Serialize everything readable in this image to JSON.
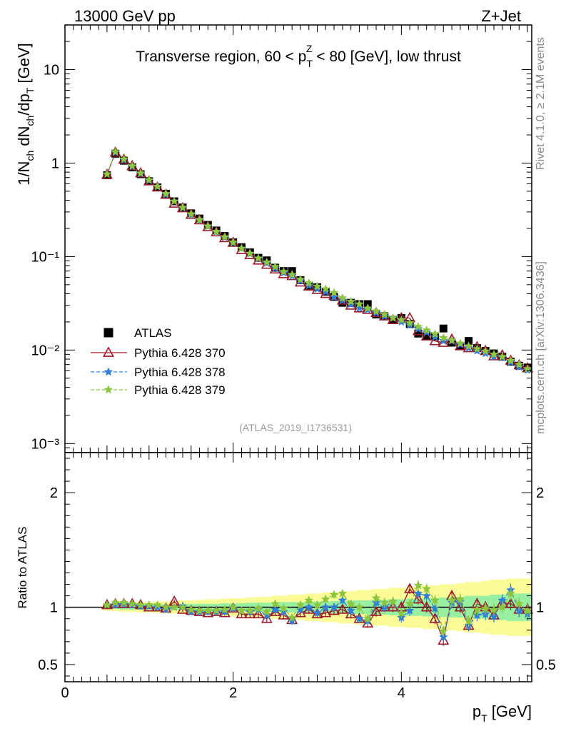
{
  "header": {
    "left": "13000 GeV pp",
    "right": "Z+Jet"
  },
  "side_labels": {
    "rivet": "Rivet 4.1.0, ≥ 2.1M events",
    "mcplots": "mcplots.cern.ch [arXiv:1306.3436]"
  },
  "analysis_id": "(ATLAS_2019_I1736531)",
  "chart_data": [
    {
      "type": "scatter",
      "panel": "main",
      "title": "Transverse region, 60 < p_T^Z < 80 [GeV], low thrust",
      "title_parts": {
        "a": "Transverse region, 60 < p",
        "sub": "T",
        "sup": "Z",
        "b": " < 80 [GeV], low thrust"
      },
      "ylabel": "1/N_ch dN_ch/dp_T [GeV]",
      "ylabel_parts": {
        "a": "1/N",
        "s1": "ch",
        "b": " dN",
        "s2": "ch",
        "c": "/dp",
        "s3": "T",
        "d": " [GeV]"
      },
      "yscale": "log",
      "ylim": [
        0.0008,
        30
      ],
      "xlim": [
        0,
        5.55
      ],
      "y_tick_labels": [
        "10",
        "1",
        "10⁻¹",
        "10⁻²",
        "10⁻³"
      ],
      "legend_position": "lower-left",
      "x": [
        0.5,
        0.6,
        0.7,
        0.8,
        0.9,
        1.0,
        1.1,
        1.2,
        1.3,
        1.4,
        1.5,
        1.6,
        1.7,
        1.8,
        1.9,
        2.0,
        2.1,
        2.2,
        2.3,
        2.4,
        2.5,
        2.6,
        2.7,
        2.8,
        2.9,
        3.0,
        3.1,
        3.2,
        3.3,
        3.4,
        3.5,
        3.6,
        3.7,
        3.8,
        3.9,
        4.0,
        4.1,
        4.2,
        4.3,
        4.4,
        4.5,
        4.6,
        4.7,
        4.8,
        4.9,
        5.0,
        5.1,
        5.2,
        5.3,
        5.4,
        5.5
      ],
      "series": [
        {
          "name": "ATLAS",
          "marker": "filled-square",
          "color": "#000000",
          "values": [
            0.74,
            1.26,
            1.06,
            0.9,
            0.76,
            0.64,
            0.55,
            0.47,
            0.39,
            0.335,
            0.29,
            0.255,
            0.218,
            0.19,
            0.166,
            0.142,
            0.126,
            0.111,
            0.097,
            0.091,
            0.076,
            0.07,
            0.07,
            0.056,
            0.049,
            0.047,
            0.042,
            0.037,
            0.032,
            0.032,
            0.031,
            0.031,
            0.024,
            0.023,
            0.021,
            0.022,
            0.019,
            0.015,
            0.014,
            0.014,
            0.017,
            0.012,
            0.011,
            0.0125,
            0.0105,
            0.0098,
            0.0092,
            0.0085,
            0.0075,
            0.0068,
            0.0065
          ]
        },
        {
          "name": "Pythia 6.428 370",
          "marker": "open-triangle",
          "color": "#9a1a2a",
          "values": [
            0.75,
            1.3,
            1.09,
            0.93,
            0.78,
            0.64,
            0.55,
            0.46,
            0.37,
            0.33,
            0.28,
            0.245,
            0.207,
            0.182,
            0.158,
            0.141,
            0.118,
            0.104,
            0.091,
            0.082,
            0.073,
            0.065,
            0.062,
            0.053,
            0.048,
            0.044,
            0.04,
            0.038,
            0.034,
            0.03,
            0.028,
            0.027,
            0.025,
            0.023,
            0.021,
            0.022,
            0.022,
            0.016,
            0.014,
            0.0125,
            0.012,
            0.013,
            0.011,
            0.0105,
            0.0108,
            0.0098,
            0.0086,
            0.0088,
            0.0077,
            0.0069,
            0.0064
          ]
        },
        {
          "name": "Pythia 6.428 378",
          "marker": "star",
          "color": "#2f7ed8",
          "values": [
            0.76,
            1.3,
            1.08,
            0.92,
            0.77,
            0.65,
            0.56,
            0.46,
            0.39,
            0.33,
            0.28,
            0.245,
            0.21,
            0.183,
            0.16,
            0.14,
            0.122,
            0.107,
            0.095,
            0.085,
            0.075,
            0.067,
            0.062,
            0.055,
            0.049,
            0.045,
            0.042,
            0.037,
            0.034,
            0.031,
            0.028,
            0.027,
            0.025,
            0.023,
            0.022,
            0.02,
            0.0185,
            0.0168,
            0.0155,
            0.0138,
            0.0125,
            0.0125,
            0.0115,
            0.0105,
            0.0098,
            0.0092,
            0.0085,
            0.0083,
            0.0074,
            0.0066,
            0.0061
          ]
        },
        {
          "name": "Pythia 6.428 379",
          "marker": "star",
          "color": "#8cc63f",
          "values": [
            0.76,
            1.32,
            1.1,
            0.93,
            0.78,
            0.66,
            0.56,
            0.47,
            0.39,
            0.335,
            0.285,
            0.248,
            0.212,
            0.185,
            0.162,
            0.142,
            0.122,
            0.108,
            0.096,
            0.087,
            0.078,
            0.069,
            0.064,
            0.057,
            0.052,
            0.048,
            0.045,
            0.041,
            0.036,
            0.033,
            0.031,
            0.028,
            0.026,
            0.024,
            0.022,
            0.021,
            0.0195,
            0.0178,
            0.0163,
            0.0148,
            0.0135,
            0.0127,
            0.0118,
            0.011,
            0.0103,
            0.0097,
            0.009,
            0.0085,
            0.0077,
            0.007,
            0.0063
          ]
        }
      ]
    },
    {
      "type": "scatter",
      "panel": "ratio",
      "ylabel": "Ratio to ATLAS",
      "xlabel": "p_T [GeV]",
      "xlabel_parts": {
        "a": "p",
        "sub": "T",
        "b": " [GeV]"
      },
      "ylim": [
        0.35,
        2.35
      ],
      "xlim": [
        0,
        5.55
      ],
      "x_ticks": [
        0,
        2,
        4
      ],
      "x_tick_labels": [
        "0",
        "2",
        "4"
      ],
      "y_ticks": [
        0.5,
        1,
        2
      ],
      "y_tick_labels": [
        "0.5",
        "1",
        "2"
      ],
      "reference_line": 1,
      "x": [
        0.5,
        0.6,
        0.7,
        0.8,
        0.9,
        1.0,
        1.1,
        1.2,
        1.3,
        1.4,
        1.5,
        1.6,
        1.7,
        1.8,
        1.9,
        2.0,
        2.1,
        2.2,
        2.3,
        2.4,
        2.5,
        2.6,
        2.7,
        2.8,
        2.9,
        3.0,
        3.1,
        3.2,
        3.3,
        3.4,
        3.5,
        3.6,
        3.7,
        3.8,
        3.9,
        4.0,
        4.1,
        4.2,
        4.3,
        4.4,
        4.5,
        4.6,
        4.7,
        4.8,
        4.9,
        5.0,
        5.1,
        5.2,
        5.3,
        5.4,
        5.5
      ],
      "band_inner": [
        0.015,
        0.015,
        0.02,
        0.02,
        0.02,
        0.02,
        0.02,
        0.025,
        0.025,
        0.025,
        0.03,
        0.03,
        0.03,
        0.03,
        0.035,
        0.035,
        0.035,
        0.04,
        0.04,
        0.04,
        0.04,
        0.045,
        0.045,
        0.045,
        0.05,
        0.05,
        0.05,
        0.055,
        0.055,
        0.06,
        0.06,
        0.06,
        0.065,
        0.065,
        0.07,
        0.07,
        0.075,
        0.075,
        0.08,
        0.08,
        0.085,
        0.09,
        0.09,
        0.1,
        0.1,
        0.1,
        0.11,
        0.11,
        0.12,
        0.12,
        0.12
      ],
      "band_outer": [
        0.03,
        0.035,
        0.04,
        0.04,
        0.045,
        0.045,
        0.05,
        0.05,
        0.055,
        0.06,
        0.06,
        0.065,
        0.07,
        0.07,
        0.075,
        0.08,
        0.08,
        0.085,
        0.09,
        0.09,
        0.1,
        0.1,
        0.11,
        0.11,
        0.12,
        0.12,
        0.13,
        0.13,
        0.14,
        0.14,
        0.15,
        0.15,
        0.16,
        0.16,
        0.17,
        0.17,
        0.18,
        0.18,
        0.19,
        0.19,
        0.2,
        0.2,
        0.21,
        0.22,
        0.22,
        0.23,
        0.24,
        0.24,
        0.25,
        0.25,
        0.25
      ],
      "series": [
        {
          "name": "Pythia 6.428 370",
          "color": "#9a1a2a",
          "values": [
            1.02,
            1.03,
            1.03,
            1.03,
            1.02,
            1.0,
            1.0,
            0.99,
            1.05,
            0.98,
            0.97,
            0.96,
            0.95,
            0.96,
            0.95,
            0.99,
            0.94,
            0.94,
            0.94,
            0.9,
            0.96,
            0.93,
            0.89,
            0.95,
            0.98,
            0.94,
            0.95,
            0.97,
            0.98,
            0.94,
            0.9,
            0.86,
            0.96,
            1.0,
            1.0,
            1.0,
            1.16,
            1.07,
            1.0,
            0.9,
            0.71,
            1.1,
            1.0,
            0.84,
            1.03,
            1.0,
            0.93,
            1.04,
            1.03,
            0.98,
            0.98
          ]
        },
        {
          "name": "Pythia 6.428 378",
          "color": "#2f7ed8",
          "values": [
            1.02,
            1.02,
            1.03,
            1.02,
            1.01,
            1.01,
            1.0,
            0.98,
            1.0,
            1.01,
            0.96,
            0.96,
            0.96,
            0.96,
            0.96,
            0.99,
            0.97,
            0.96,
            0.98,
            0.93,
            0.98,
            0.96,
            0.88,
            0.98,
            1.0,
            0.95,
            1.0,
            1.0,
            1.06,
            0.97,
            0.9,
            0.88,
            1.04,
            1.0,
            1.05,
            0.91,
            0.97,
            1.12,
            1.1,
            0.99,
            0.74,
            1.04,
            1.05,
            0.84,
            0.93,
            0.94,
            0.92,
            1.06,
            1.15,
            0.97,
            0.94
          ]
        },
        {
          "name": "Pythia 6.428 379",
          "color": "#8cc63f",
          "values": [
            1.02,
            1.04,
            1.04,
            1.03,
            1.02,
            1.02,
            1.02,
            1.0,
            1.0,
            1.0,
            0.98,
            0.97,
            0.97,
            0.97,
            0.98,
            1.0,
            0.97,
            0.97,
            0.99,
            0.96,
            1.03,
            0.99,
            0.91,
            1.02,
            1.06,
            1.02,
            1.07,
            1.11,
            1.12,
            1.03,
            1.0,
            0.9,
            1.08,
            1.04,
            1.05,
            0.95,
            1.03,
            1.19,
            1.16,
            1.06,
            0.79,
            1.06,
            1.07,
            0.88,
            0.98,
            0.99,
            0.98,
            1.0,
            1.12,
            1.03,
            0.97
          ]
        }
      ]
    }
  ]
}
